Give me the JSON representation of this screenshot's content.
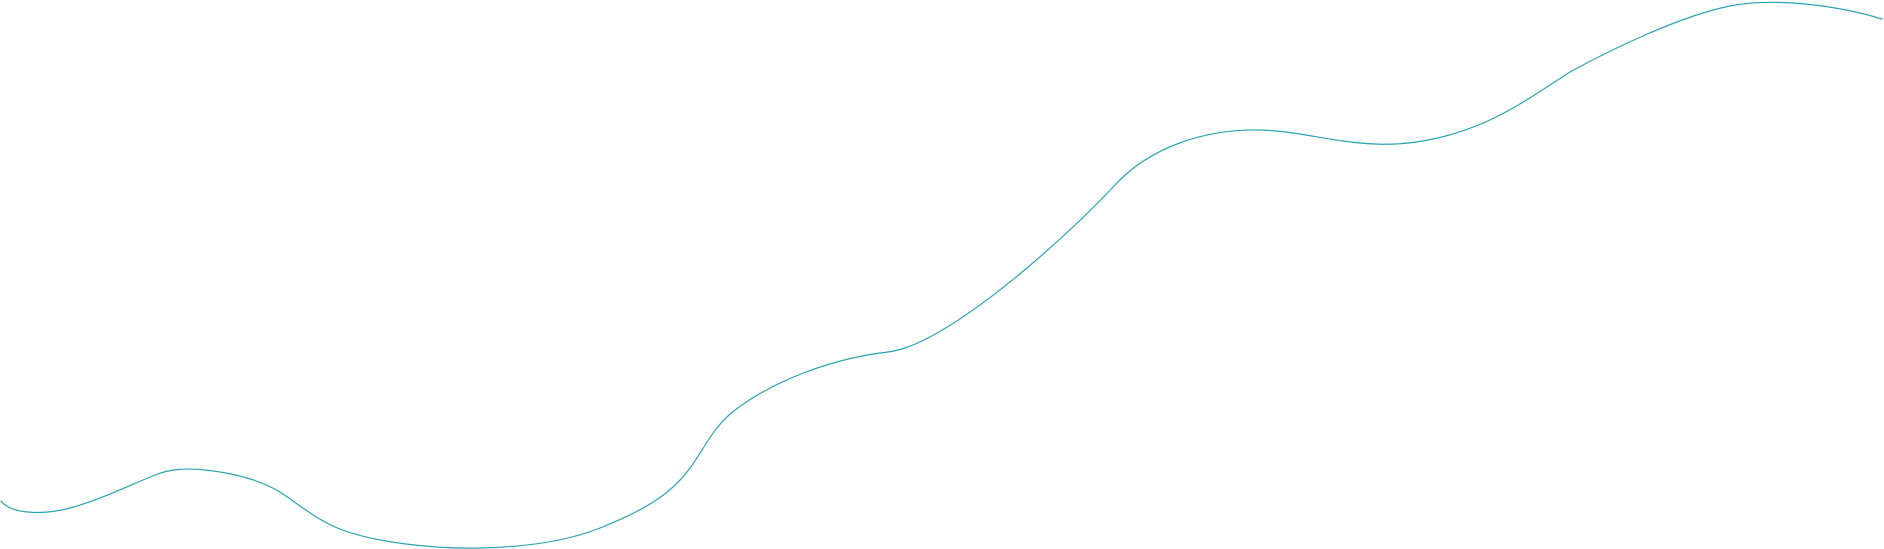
{
  "decoration": {
    "name": "teal-wave-line",
    "stroke_color": "#2aa3b3",
    "background_color": "#ffffff"
  }
}
